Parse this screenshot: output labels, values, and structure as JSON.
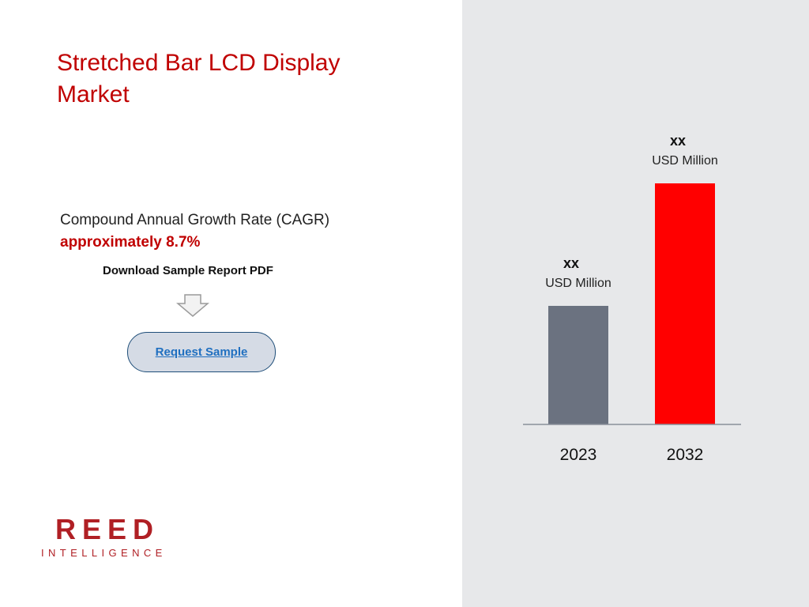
{
  "title": "Stretched Bar LCD Display Market",
  "cagr": {
    "label": "Compound Annual Growth Rate (CAGR)",
    "value": "approximately 8.7%"
  },
  "download": {
    "label": "Download Sample Report PDF",
    "arrow_icon": "down-arrow-icon"
  },
  "request_button": {
    "label": "Request Sample"
  },
  "logo": {
    "main": "REED",
    "sub": "INTELLIGENCE"
  },
  "colors": {
    "accent": "#c00000",
    "bar_2023": "#6b7280",
    "bar_2032": "#ff0000",
    "panel": "#e7e8ea"
  },
  "chart_data": {
    "type": "bar",
    "categories": [
      "2023",
      "2032"
    ],
    "values": [
      150,
      305
    ],
    "value_labels": [
      "xx",
      "xx"
    ],
    "unit_labels": [
      "USD Million",
      "USD Million"
    ],
    "ylim": [
      0,
      340
    ],
    "colors": [
      "#6b7280",
      "#ff0000"
    ],
    "grid": false
  }
}
